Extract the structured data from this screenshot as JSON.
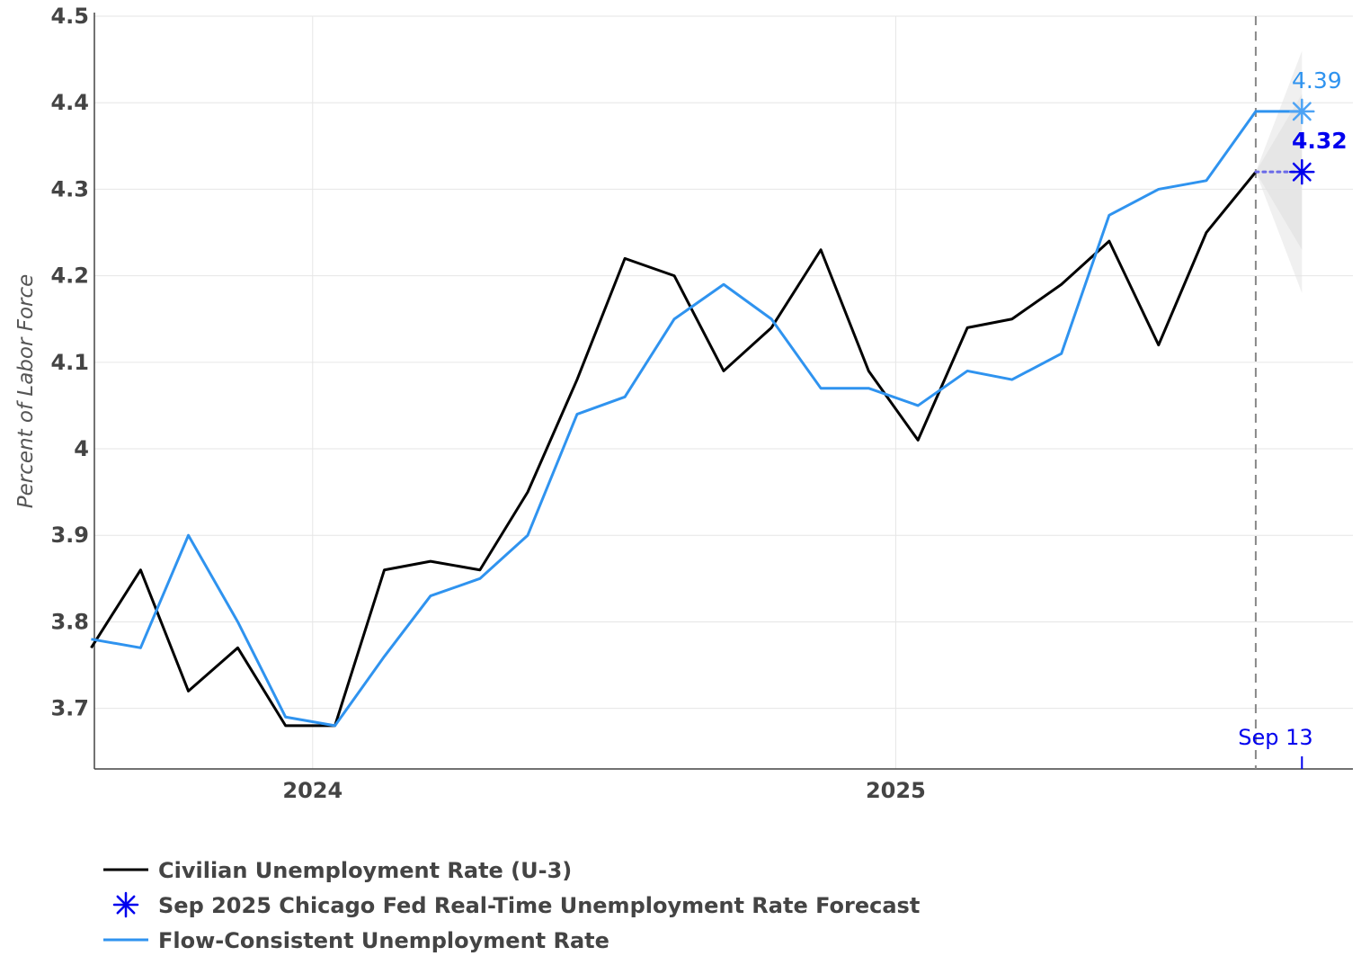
{
  "chart_data": {
    "type": "line",
    "title": "",
    "xlabel": "",
    "ylabel": "Percent of Labor Force",
    "ylim": [
      3.63,
      4.5
    ],
    "yticks": [
      "3.7",
      "3.8",
      "3.9",
      "4",
      "4.1",
      "4.2",
      "4.3",
      "4.4",
      "4.5"
    ],
    "ytick_values": [
      3.7,
      3.8,
      3.9,
      4.0,
      4.1,
      4.2,
      4.3,
      4.4,
      4.5
    ],
    "xlim": [
      "2023-08-17",
      "2025-10-15"
    ],
    "xticks": [
      {
        "label": "2024",
        "date": "2024-01-01"
      },
      {
        "label": "2025",
        "date": "2025-01-01"
      }
    ],
    "grid": true,
    "legend_position": "bottom-left",
    "colors": {
      "u3": "#000000",
      "flow": "#2f93ef",
      "forecast": "#0000ee",
      "forecast_line": "#6a6ae8",
      "band": "#e4e4e4",
      "vline": "#888888",
      "flow_point": "#4da3f5"
    },
    "series": [
      {
        "name": "Civilian Unemployment Rate (U-3)",
        "x": [
          "2023-08-15",
          "2023-09-15",
          "2023-10-15",
          "2023-11-15",
          "2023-12-15",
          "2024-01-15",
          "2024-02-15",
          "2024-03-15",
          "2024-04-15",
          "2024-05-15",
          "2024-06-15",
          "2024-07-15",
          "2024-08-15",
          "2024-09-15",
          "2024-10-15",
          "2024-11-15",
          "2024-12-15",
          "2025-01-15",
          "2025-02-15",
          "2025-03-15",
          "2025-04-15",
          "2025-05-15",
          "2025-06-15",
          "2025-07-15",
          "2025-08-15"
        ],
        "values": [
          3.77,
          3.86,
          3.72,
          3.77,
          3.68,
          3.68,
          3.86,
          3.87,
          3.86,
          3.95,
          4.08,
          4.22,
          4.2,
          4.09,
          4.14,
          4.23,
          4.09,
          4.01,
          4.14,
          4.15,
          4.19,
          4.24,
          4.12,
          4.25,
          4.32
        ]
      },
      {
        "name": "Flow-Consistent Unemployment Rate",
        "x": [
          "2023-08-15",
          "2023-09-15",
          "2023-10-15",
          "2023-11-15",
          "2023-12-15",
          "2024-01-15",
          "2024-02-15",
          "2024-03-15",
          "2024-04-15",
          "2024-05-15",
          "2024-06-15",
          "2024-07-15",
          "2024-08-15",
          "2024-09-15",
          "2024-10-15",
          "2024-11-15",
          "2024-12-15",
          "2025-01-15",
          "2025-02-15",
          "2025-03-15",
          "2025-04-15",
          "2025-05-15",
          "2025-06-15",
          "2025-07-15",
          "2025-08-15",
          "2025-09-13"
        ],
        "values": [
          3.78,
          3.77,
          3.9,
          3.8,
          3.69,
          3.68,
          3.76,
          3.83,
          3.85,
          3.9,
          4.04,
          4.06,
          4.15,
          4.19,
          4.15,
          4.07,
          4.07,
          4.05,
          4.09,
          4.08,
          4.11,
          4.27,
          4.3,
          4.31,
          4.39,
          4.39
        ]
      },
      {
        "name": "Sep 2025 Chicago Fed Real-Time Unemployment Rate Forecast",
        "x": [
          "2025-09-13"
        ],
        "values": [
          4.32
        ]
      }
    ],
    "forecast_connector": {
      "x": [
        "2025-08-15",
        "2025-09-13"
      ],
      "values": [
        4.32,
        4.32
      ]
    },
    "forecast_band": {
      "x": [
        "2025-08-15",
        "2025-09-13"
      ],
      "inner_low": [
        4.32,
        4.23
      ],
      "inner_high": [
        4.32,
        4.41
      ],
      "outer_low": [
        4.32,
        4.18
      ],
      "outer_high": [
        4.32,
        4.46
      ]
    },
    "vline_date": "2025-08-15",
    "annotations": [
      {
        "text": "4.39",
        "x": "2025-09-13",
        "y": 4.39,
        "color": "#2f93ef",
        "bold": false
      },
      {
        "text": "4.32",
        "x": "2025-09-13",
        "y": 4.32,
        "color": "#0000ee",
        "bold": true
      },
      {
        "text": "Sep 13",
        "x": "2025-09-13",
        "color": "#0000ee",
        "bold": false
      }
    ],
    "legend": [
      {
        "label": "Civilian Unemployment Rate (U-3)",
        "marker": "line",
        "color": "#000000"
      },
      {
        "label": "Sep 2025 Chicago Fed Real-Time Unemployment Rate Forecast",
        "marker": "asterisk",
        "color": "#0000ee"
      },
      {
        "label": "Flow-Consistent Unemployment Rate",
        "marker": "line",
        "color": "#2f93ef"
      }
    ]
  }
}
